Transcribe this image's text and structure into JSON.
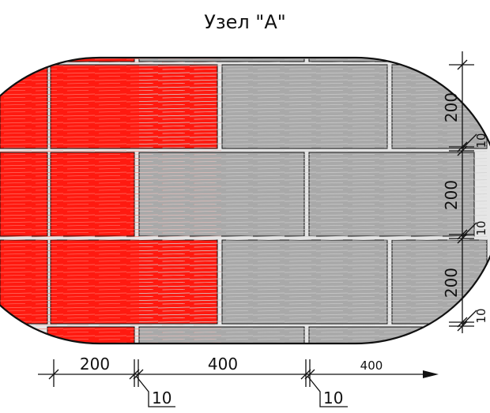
{
  "title": "Узел \"А\"",
  "colors": {
    "red_brick": "#ff1a10",
    "gray_brick": "#a9a9a9",
    "mortar": "#e8e8e8",
    "line": "#111111"
  },
  "dimensions": {
    "vertical": {
      "course_1": "200",
      "joint_1": "10",
      "course_2": "200",
      "joint_2": "10",
      "course_3": "200",
      "joint_3": "10"
    },
    "horizontal": {
      "bond_left": "200",
      "joint_left": "10",
      "stretcher": "400",
      "joint_right": "10",
      "stretcher_next": "400"
    }
  }
}
